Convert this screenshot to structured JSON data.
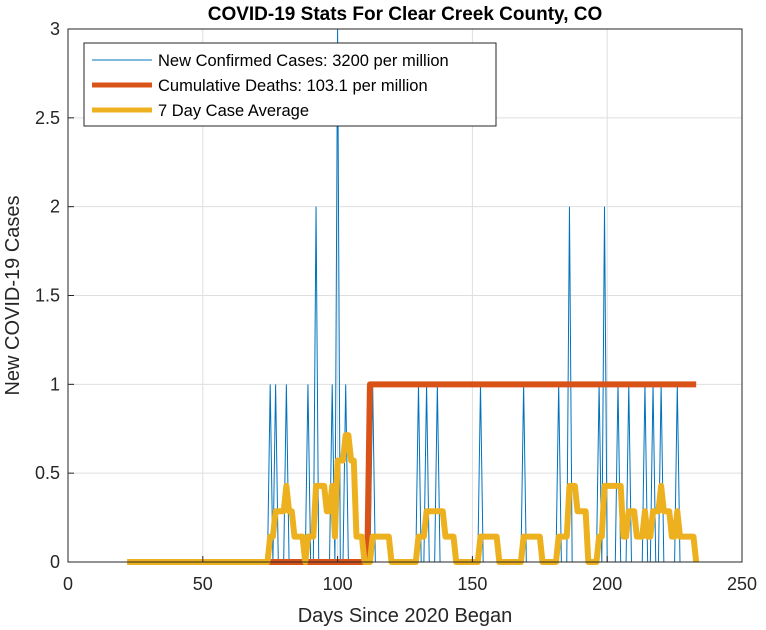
{
  "chart_data": {
    "type": "line",
    "title": "COVID-19 Stats For Clear Creek County, CO",
    "xlabel": "Days Since 2020 Began",
    "ylabel": "New COVID-19 Cases",
    "xlim": [
      0,
      250
    ],
    "ylim": [
      0,
      3
    ],
    "xticks": [
      0,
      50,
      100,
      150,
      200,
      250
    ],
    "yticks": [
      0,
      0.5,
      1,
      1.5,
      2,
      2.5,
      3
    ],
    "xtick_labels": [
      "0",
      "50",
      "100",
      "150",
      "200",
      "250"
    ],
    "ytick_labels": [
      "0",
      "0.5",
      "1",
      "1.5",
      "2",
      "2.5",
      "3"
    ],
    "grid": true,
    "legend_position": "top-left",
    "colors": {
      "new_cases": "#0072BD",
      "deaths": "#D95319",
      "average": "#EDB120",
      "grid": "#DFDFDF",
      "axis": "#262626"
    },
    "series": [
      {
        "name": "New Confirmed Cases",
        "legend": "New Confirmed Cases: 3200 per million",
        "style": "thin",
        "spike_days": [
          75,
          77,
          81,
          89,
          92,
          98,
          100,
          103,
          113,
          130,
          133,
          137,
          153,
          169,
          182,
          186,
          197,
          199,
          204,
          208,
          214,
          217,
          220,
          226
        ],
        "spike_values": [
          1,
          1,
          1,
          1,
          2,
          1,
          3,
          1,
          1,
          1,
          1,
          1,
          1,
          1,
          1,
          2,
          1,
          2,
          1,
          1,
          1,
          1,
          1,
          1
        ],
        "x_range": [
          22,
          233
        ]
      },
      {
        "name": "Cumulative Deaths",
        "legend": "Cumulative Deaths: 103.1 per million",
        "style": "thick",
        "x": [
          22,
          111,
          112,
          233
        ],
        "y": [
          0,
          0,
          1,
          1
        ]
      },
      {
        "name": "7 Day Case Average",
        "legend": "7 Day Case Average",
        "style": "thick",
        "derived_from": "New Confirmed Cases",
        "window_days": 7
      }
    ]
  }
}
